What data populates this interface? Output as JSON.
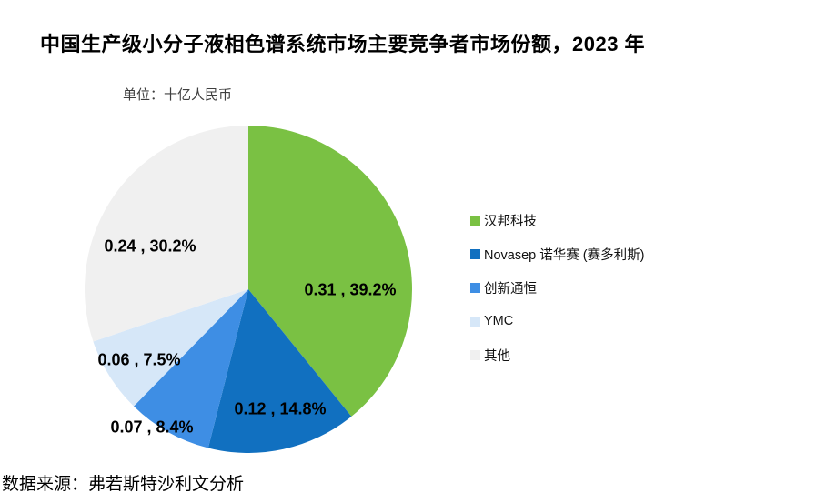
{
  "header": {
    "title": "中国生产级小分子液相色谱系统市场主要竞争者市场份额，2023 年",
    "unit_label": "单位：十亿人民币"
  },
  "footer": {
    "source": "数据来源：弗若斯特沙利文分析"
  },
  "chart_data": {
    "type": "pie",
    "title": "中国生产级小分子液相色谱系统市场主要竞争者市场份额，2023 年",
    "unit": "十亿人民币",
    "legend_position": "right",
    "start_angle": "12 o'clock, clockwise",
    "slices": [
      {
        "id": "hanbang",
        "name": "汉邦科技",
        "value": 0.31,
        "pct": 39.2,
        "color": "#7AC143",
        "data_label": "0.31 , 39.2%"
      },
      {
        "id": "novasep",
        "name": "Novasep 诺华赛 (赛多利斯)",
        "value": 0.12,
        "pct": 14.8,
        "color": "#1170C0",
        "data_label": "0.12 , 14.8%"
      },
      {
        "id": "cxth",
        "name": "创新通恒",
        "value": 0.07,
        "pct": 8.4,
        "color": "#3E8EE4",
        "data_label": "0.07 , 8.4%"
      },
      {
        "id": "ymc",
        "name": "YMC",
        "value": 0.06,
        "pct": 7.5,
        "color": "#D6E7F8",
        "data_label": "0.06 , 7.5%"
      },
      {
        "id": "others",
        "name": "其他",
        "value": 0.24,
        "pct": 30.2,
        "color": "#F0F0F0",
        "data_label": "0.24 , 30.2%"
      }
    ]
  }
}
